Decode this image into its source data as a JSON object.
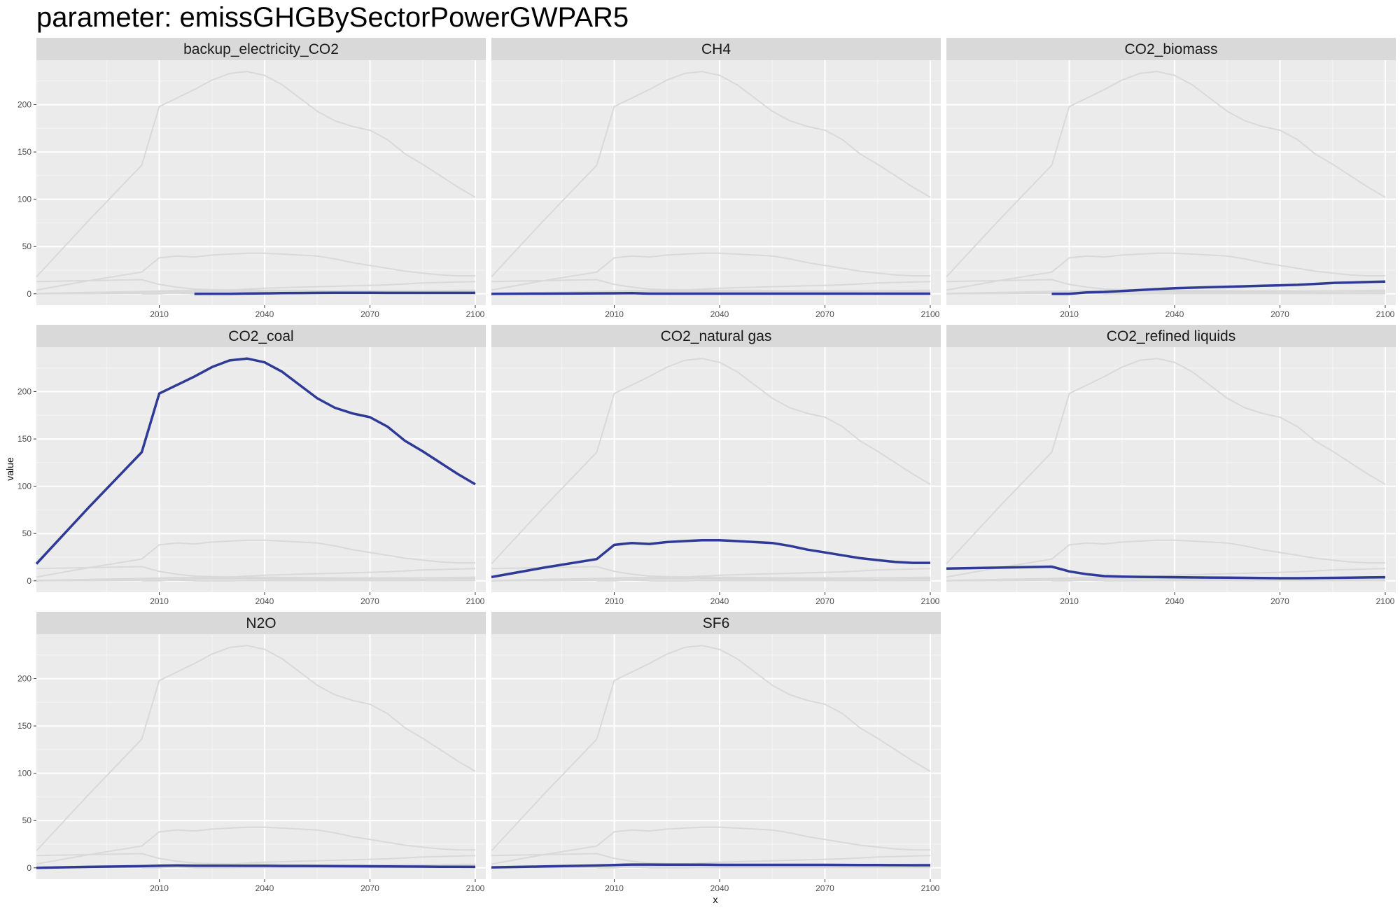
{
  "title": "parameter: emissGHGBySectorPowerGWPAR5",
  "chart_data": {
    "type": "line",
    "layout": "facet_wrap",
    "ncol": 3,
    "xlabel": "x",
    "ylabel": "value",
    "xlim": [
      1975,
      2103
    ],
    "ylim": [
      -12,
      247
    ],
    "x_ticks": [
      2010,
      2040,
      2070,
      2100
    ],
    "y_ticks": [
      0,
      50,
      100,
      150,
      200
    ],
    "highlight_color": "#2E3A96",
    "background_color": "#d9d9d9",
    "grid": true,
    "series": [
      {
        "name": "backup_electricity_CO2",
        "x": [
          2020,
          2025,
          2030,
          2035,
          2040,
          2045,
          2050,
          2055,
          2060,
          2065,
          2070,
          2075,
          2080,
          2085,
          2090,
          2095,
          2100
        ],
        "values": [
          0,
          0,
          0,
          0.3,
          0.5,
          0.7,
          0.9,
          1.0,
          1.1,
          1.1,
          1.1,
          1.0,
          1.0,
          1.0,
          1.0,
          1.0,
          1.0
        ]
      },
      {
        "name": "CH4",
        "x": [
          1975,
          1990,
          2005,
          2010,
          2015,
          2020,
          2025,
          2030,
          2035,
          2040,
          2045,
          2050,
          2055,
          2060,
          2065,
          2070,
          2075,
          2080,
          2085,
          2090,
          2095,
          2100
        ],
        "values": [
          0,
          0.2,
          0.5,
          0.6,
          0.7,
          0.2,
          0.2,
          0.2,
          0.2,
          0.2,
          0.2,
          0.2,
          0.2,
          0.2,
          0.2,
          0.2,
          0.2,
          0.2,
          0.2,
          0.2,
          0.2,
          0.2
        ]
      },
      {
        "name": "CO2_biomass",
        "x": [
          2005,
          2010,
          2015,
          2020,
          2025,
          2030,
          2035,
          2040,
          2045,
          2050,
          2055,
          2060,
          2065,
          2070,
          2075,
          2080,
          2085,
          2090,
          2095,
          2100
        ],
        "values": [
          0,
          0,
          1.5,
          2.0,
          3.0,
          4.0,
          5.0,
          6.0,
          6.5,
          7.0,
          7.5,
          8.0,
          8.5,
          9.0,
          9.5,
          10.5,
          11.5,
          12.0,
          12.5,
          13.0
        ]
      },
      {
        "name": "CO2_coal",
        "x": [
          1975,
          1990,
          2005,
          2010,
          2015,
          2020,
          2025,
          2030,
          2035,
          2040,
          2045,
          2050,
          2055,
          2060,
          2065,
          2070,
          2075,
          2080,
          2085,
          2090,
          2095,
          2100
        ],
        "values": [
          18,
          78,
          136,
          198,
          207,
          216,
          226,
          233,
          235,
          231,
          221,
          207,
          193,
          183,
          177,
          173,
          163,
          148,
          137,
          125,
          113,
          102
        ]
      },
      {
        "name": "CO2_natural gas",
        "x": [
          1975,
          1990,
          2005,
          2010,
          2015,
          2020,
          2025,
          2030,
          2035,
          2040,
          2045,
          2050,
          2055,
          2060,
          2065,
          2070,
          2075,
          2080,
          2085,
          2090,
          2095,
          2100
        ],
        "values": [
          4,
          14,
          23,
          38,
          40,
          39,
          41,
          42,
          43,
          43,
          42,
          41,
          40,
          37,
          33,
          30,
          27,
          24,
          22,
          20,
          19,
          19
        ]
      },
      {
        "name": "CO2_refined liquids",
        "x": [
          1975,
          1990,
          2005,
          2010,
          2015,
          2020,
          2025,
          2030,
          2035,
          2040,
          2045,
          2050,
          2055,
          2060,
          2065,
          2070,
          2075,
          2080,
          2085,
          2090,
          2095,
          2100
        ],
        "values": [
          13,
          14,
          15,
          10,
          7,
          5,
          4.5,
          4.2,
          4,
          3.8,
          3.6,
          3.5,
          3.4,
          3.2,
          3,
          2.8,
          2.8,
          3,
          3.2,
          3.4,
          3.6,
          3.8
        ]
      },
      {
        "name": "N2O",
        "x": [
          1975,
          1990,
          2005,
          2010,
          2015,
          2020,
          2025,
          2030,
          2035,
          2040,
          2045,
          2050,
          2055,
          2060,
          2065,
          2070,
          2075,
          2080,
          2085,
          2090,
          2095,
          2100
        ],
        "values": [
          0,
          1,
          1.8,
          2.2,
          2.5,
          2.3,
          2.2,
          2.2,
          2.1,
          2.1,
          2.0,
          2.0,
          1.9,
          1.8,
          1.7,
          1.6,
          1.5,
          1.4,
          1.3,
          1.2,
          1.1,
          1.0
        ]
      },
      {
        "name": "SF6",
        "x": [
          1975,
          1990,
          2005,
          2010,
          2015,
          2020,
          2025,
          2030,
          2035,
          2040,
          2045,
          2050,
          2055,
          2060,
          2065,
          2070,
          2075,
          2080,
          2085,
          2090,
          2095,
          2100
        ],
        "values": [
          0.5,
          1.5,
          2.5,
          3.0,
          3.5,
          3.5,
          3.4,
          3.3,
          3.3,
          3.2,
          3.2,
          3.2,
          3.2,
          3.2,
          3.2,
          3.2,
          3.1,
          3.0,
          3.0,
          2.9,
          2.8,
          2.8
        ]
      }
    ]
  }
}
